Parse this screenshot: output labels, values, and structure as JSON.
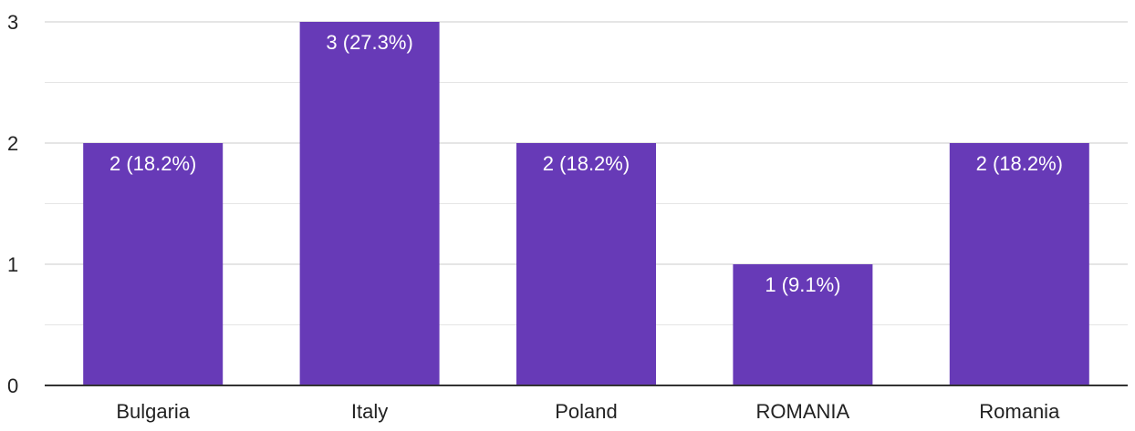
{
  "chart_data": {
    "type": "bar",
    "title": "",
    "xlabel": "",
    "ylabel": "",
    "categories": [
      "Bulgaria",
      "Italy",
      "Poland",
      "ROMANIA",
      "Romania"
    ],
    "values": [
      2,
      3,
      2,
      1,
      2
    ],
    "data_labels": [
      "2 (18.2%)",
      "3 (27.3%)",
      "2 (18.2%)",
      "1 (9.1%)",
      "2 (18.2%)"
    ],
    "ylim": [
      0,
      3
    ],
    "yticks": [
      "0",
      "1",
      "2",
      "3"
    ],
    "grid": true,
    "legend": "none"
  },
  "colors": {
    "bar": "#673ab7",
    "grid": "#e5e5e5",
    "baseline": "#333333",
    "axis_text": "#222222",
    "label_text": "#ffffff"
  }
}
